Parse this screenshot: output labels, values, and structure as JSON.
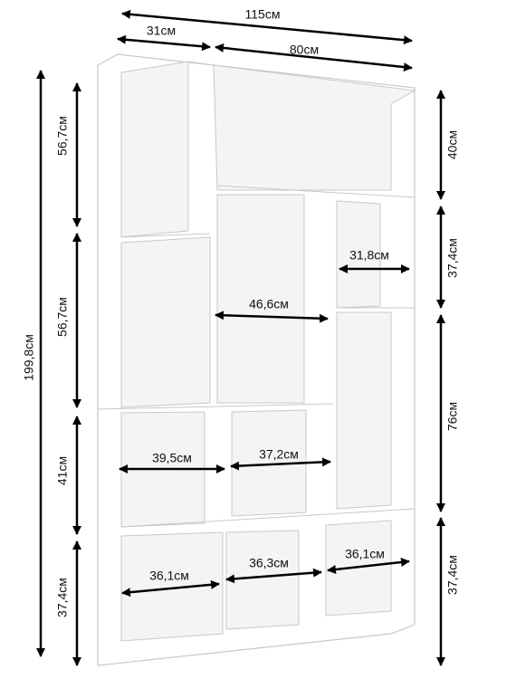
{
  "top": [
    "115см",
    "31см",
    "80см"
  ],
  "height": "199,8см",
  "left": [
    "56,7см",
    "56,7см",
    "41см",
    "37,4см"
  ],
  "right": [
    "40см",
    "37,4см",
    "76см",
    "37,4см"
  ],
  "inner": [
    "31,8см",
    "46,6см",
    "39,5см",
    "37,2см",
    "36,1см",
    "36,3см",
    "36,1см"
  ]
}
